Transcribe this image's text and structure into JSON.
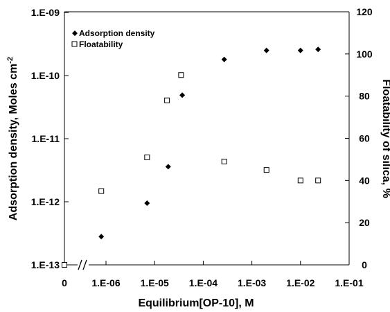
{
  "chart_data": {
    "type": "scatter",
    "xlabel": "Equilibrium[OP-10], M",
    "ylabel_left": "Adsorption density, Moles cm",
    "ylabel_left_sup": "-2",
    "ylabel_right": "Floatability of silica, %",
    "x_scale": "log",
    "x_zero_label": "0",
    "x_break": true,
    "x_ticks": [
      "1.E-06",
      "1.E-05",
      "1.E-04",
      "1.E-03",
      "1.E-02",
      "1.E-01"
    ],
    "x_tick_values": [
      1e-06,
      1e-05,
      0.0001,
      0.001,
      0.01,
      0.1
    ],
    "y_left_scale": "log",
    "y_left_ticks": [
      "1.E-13",
      "1.E-12",
      "1.E-11",
      "1.E-10",
      "1.E-09"
    ],
    "y_left_tick_values": [
      1e-13,
      1e-12,
      1e-11,
      1e-10,
      1e-09
    ],
    "y_right_ticks": [
      "0",
      "20",
      "40",
      "60",
      "80",
      "100",
      "120"
    ],
    "y_right_tick_values": [
      0,
      20,
      40,
      60,
      80,
      100,
      120
    ],
    "legend_position": "top-left",
    "grid": false,
    "series": [
      {
        "name": "Adsorption density",
        "marker": "filled-diamond",
        "axis": "left",
        "points": [
          {
            "x": 8e-07,
            "y": 2.8e-13
          },
          {
            "x": 7e-06,
            "y": 9.5e-13
          },
          {
            "x": 1.9e-05,
            "y": 3.6e-12
          },
          {
            "x": 3.7e-05,
            "y": 4.9e-11
          },
          {
            "x": 0.00027,
            "y": 1.8e-10
          },
          {
            "x": 0.002,
            "y": 2.5e-10
          },
          {
            "x": 0.01,
            "y": 2.5e-10
          },
          {
            "x": 0.023,
            "y": 2.6e-10
          }
        ]
      },
      {
        "name": "Floatability",
        "marker": "open-square",
        "axis": "right",
        "points": [
          {
            "x": 0,
            "y": 0
          },
          {
            "x": 8e-07,
            "y": 35
          },
          {
            "x": 7e-06,
            "y": 51
          },
          {
            "x": 1.8e-05,
            "y": 78
          },
          {
            "x": 3.5e-05,
            "y": 90
          },
          {
            "x": 0.00027,
            "y": 49
          },
          {
            "x": 0.002,
            "y": 45
          },
          {
            "x": 0.01,
            "y": 40
          },
          {
            "x": 0.023,
            "y": 40
          }
        ]
      }
    ]
  }
}
